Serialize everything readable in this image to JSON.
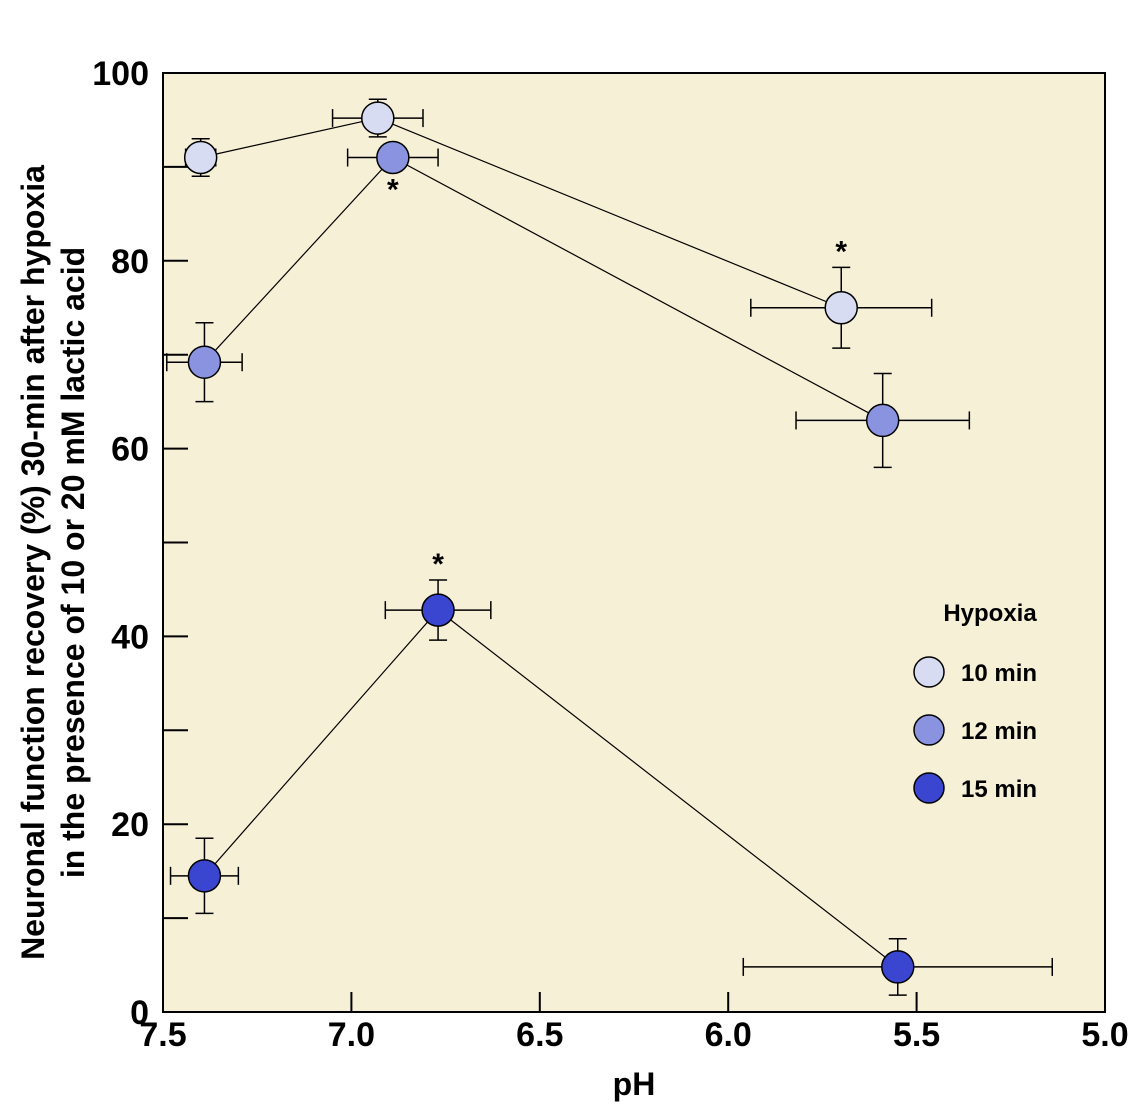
{
  "chart_data": {
    "type": "scatter",
    "xlabel": "pH",
    "ylabel_line1": "Neuronal function recovery (%) 30-min after hypoxia",
    "ylabel_line2": "in the presence of 10 or 20 mM lactic acid",
    "xlim": [
      7.5,
      5.0
    ],
    "ylim": [
      0,
      100
    ],
    "x_reversed": true,
    "x_ticks": [
      7.5,
      7.0,
      6.5,
      6.0,
      5.5,
      5.0
    ],
    "x_tick_labels": [
      "7.5",
      "7.0",
      "6.5",
      "6.0",
      "5.5",
      "5.0"
    ],
    "y_ticks": [
      0,
      20,
      40,
      60,
      80,
      100
    ],
    "y_tick_labels": [
      "0",
      "20",
      "40",
      "60",
      "80",
      "100"
    ],
    "y_minor_ticks": [
      10,
      30,
      50,
      70,
      90
    ],
    "background_color": "#f6f0d6",
    "grid": false,
    "legend": {
      "title": "Hypoxia",
      "position": "right"
    },
    "series": [
      {
        "name": "10 min",
        "color": "#d8dcf2",
        "points": [
          {
            "x": 7.4,
            "y": 91,
            "xerr": 0.04,
            "yerr": 2,
            "star": ""
          },
          {
            "x": 6.93,
            "y": 95.2,
            "xerr": 0.12,
            "yerr": 2,
            "star": ""
          },
          {
            "x": 5.7,
            "y": 75,
            "xerr": 0.24,
            "yerr": 4.3,
            "star": "*"
          }
        ]
      },
      {
        "name": "12 min",
        "color": "#8a93e0",
        "points": [
          {
            "x": 7.39,
            "y": 69.2,
            "xerr": 0.1,
            "yerr": 4.2,
            "star": ""
          },
          {
            "x": 6.89,
            "y": 91,
            "xerr": 0.12,
            "yerr": 1.2,
            "star": "*"
          },
          {
            "x": 5.59,
            "y": 63,
            "xerr": 0.23,
            "yerr": 5,
            "star": ""
          }
        ]
      },
      {
        "name": "15 min",
        "color": "#3a45d0",
        "points": [
          {
            "x": 7.39,
            "y": 14.5,
            "xerr": 0.09,
            "yerr": 4,
            "star": ""
          },
          {
            "x": 6.77,
            "y": 42.8,
            "xerr": 0.14,
            "yerr": 3.2,
            "star": "*"
          },
          {
            "x": 5.55,
            "y": 4.8,
            "xerr": 0.41,
            "yerr": 3,
            "star": ""
          }
        ]
      }
    ]
  }
}
